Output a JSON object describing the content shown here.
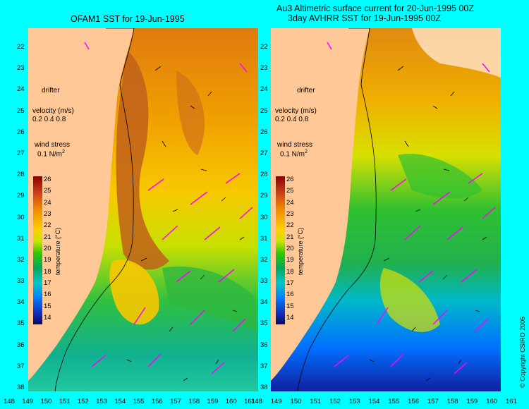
{
  "titles": {
    "left": "OFAM1 SST for 19-Jun-1995",
    "right_line1": "Au3 Altimetric surface current for 20-Jun-1995 00Z",
    "right_line2": "3day AVHRR SST for 19-Jun-1995 00Z"
  },
  "legend": {
    "drifter": "drifter",
    "velocity_label": "velocity (m/s)",
    "velocity_scale": "0.2 0.4 0.8",
    "wind_label": "wind stress",
    "wind_scale_value": "0.1 N/m",
    "wind_scale_exp": "2"
  },
  "colorbar": {
    "label": "temperature (°C)",
    "ticks": [
      "26",
      "25",
      "24",
      "23",
      "22",
      "21",
      "20",
      "19",
      "18",
      "17",
      "16",
      "15",
      "14"
    ],
    "colors": [
      "#8b0000",
      "#d0441b",
      "#f08a00",
      "#ffd000",
      "#c8e400",
      "#30c800",
      "#00a860",
      "#00c8c8",
      "#0080ff",
      "#1030c0",
      "#0a0a60"
    ]
  },
  "axes": {
    "lat_ticks": [
      "22",
      "23",
      "24",
      "25",
      "26",
      "27",
      "28",
      "29",
      "30",
      "31",
      "32",
      "33",
      "34",
      "35",
      "36",
      "37",
      "38"
    ],
    "lon_ticks": [
      "148",
      "149",
      "150",
      "151",
      "152",
      "153",
      "154",
      "155",
      "156",
      "157",
      "158",
      "159",
      "160",
      "161"
    ]
  },
  "copyright": "© Copyright CSIRO 2005",
  "colors": {
    "background": "#00ffff",
    "land": "#ffc896",
    "arrow_magenta": "#ff00ff"
  }
}
